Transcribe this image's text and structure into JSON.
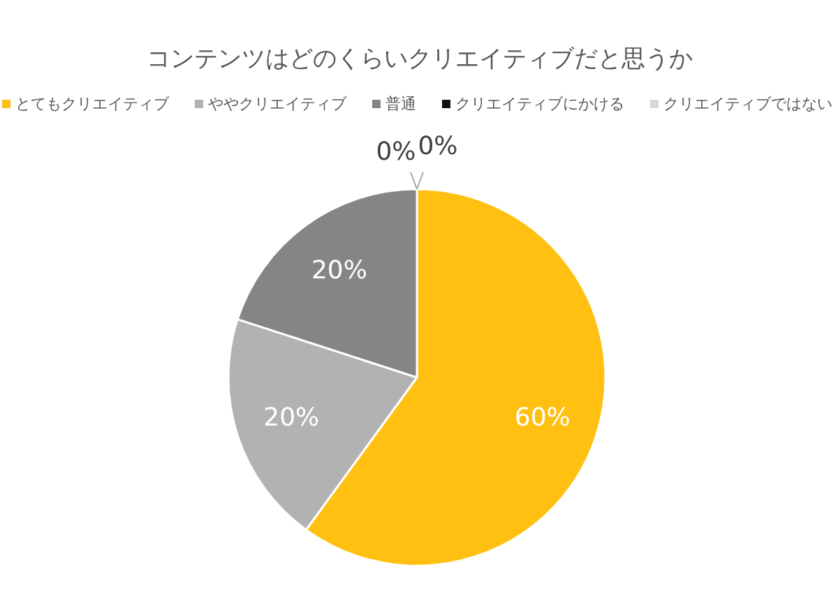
{
  "chart_data": {
    "type": "pie",
    "title": "コンテンツはどのくらいクリエイティブだと思うか",
    "categories": [
      "とてもクリエイティブ",
      "ややクリエイティブ",
      "普通",
      "クリエイティブにかける",
      "クリエイティブではない"
    ],
    "values": [
      60,
      20,
      20,
      0,
      0
    ],
    "colors": [
      "#ffc011",
      "#b2b2b2",
      "#858585",
      "#111111",
      "#d9d9d9"
    ],
    "value_labels": [
      "60%",
      "20%",
      "20%",
      "0%",
      "0%"
    ],
    "legend": "top"
  }
}
